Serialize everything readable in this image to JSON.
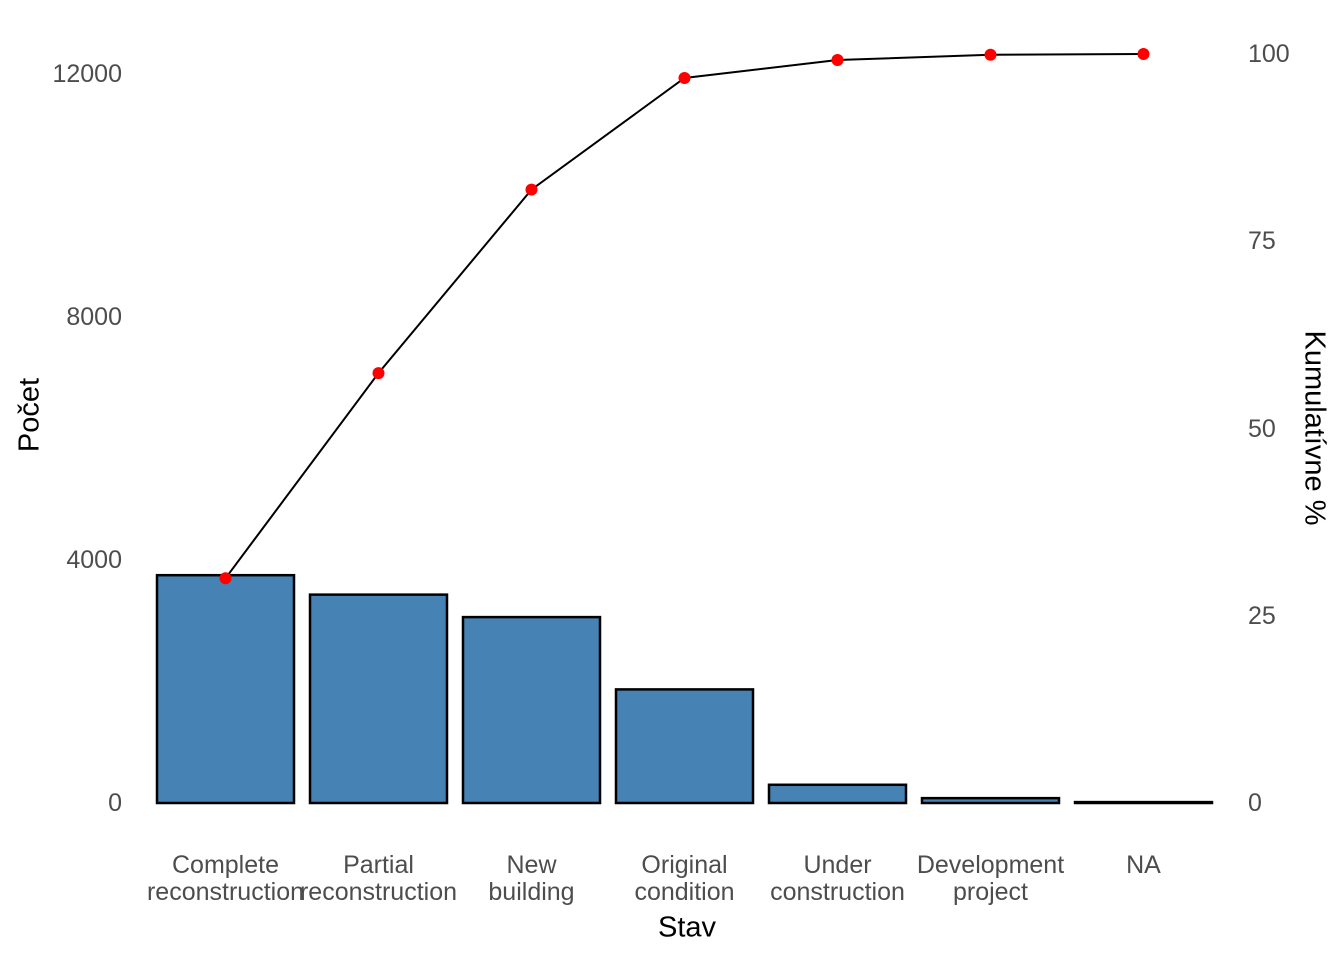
{
  "chart_data": {
    "type": "bar",
    "subtype": "pareto-with-cumulative-line",
    "title": "",
    "xlabel": "Stav",
    "ylabel_left": "Počet",
    "ylabel_right": "Kumulatívne %",
    "categories": [
      "Complete reconstruction",
      "Partial reconstruction",
      "New building",
      "Original condition",
      "Under construction",
      "Development project",
      "NA"
    ],
    "categories_wrapped": [
      "Complete\nreconstruction",
      "Partial\nreconstruction",
      "New\nbuilding",
      "Original\ncondition",
      "Under\nconstruction",
      "Development\nproject",
      "NA"
    ],
    "series": [
      {
        "name": "Počet",
        "type": "bar",
        "values": [
          3750,
          3430,
          3060,
          1870,
          300,
          80,
          15
        ]
      },
      {
        "name": "Kumulatívne %",
        "type": "line",
        "values": [
          30.0,
          57.4,
          81.9,
          96.8,
          99.2,
          99.9,
          100.0
        ]
      }
    ],
    "y_left_ticks": [
      0,
      4000,
      8000,
      12000
    ],
    "y_left_range": [
      0,
      12700
    ],
    "y_right_ticks": [
      0,
      25,
      50,
      75,
      100
    ],
    "y_right_range": [
      0,
      100
    ],
    "grid": "off",
    "legend": "none",
    "axis_lines": "none",
    "colors": {
      "bar_fill": "#4682B4",
      "bar_stroke": "#000000",
      "line": "#000000",
      "point": "#FF0000",
      "tick_label": "#4d4d4d",
      "axis_title": "#000000",
      "background": "#FFFFFF"
    }
  }
}
